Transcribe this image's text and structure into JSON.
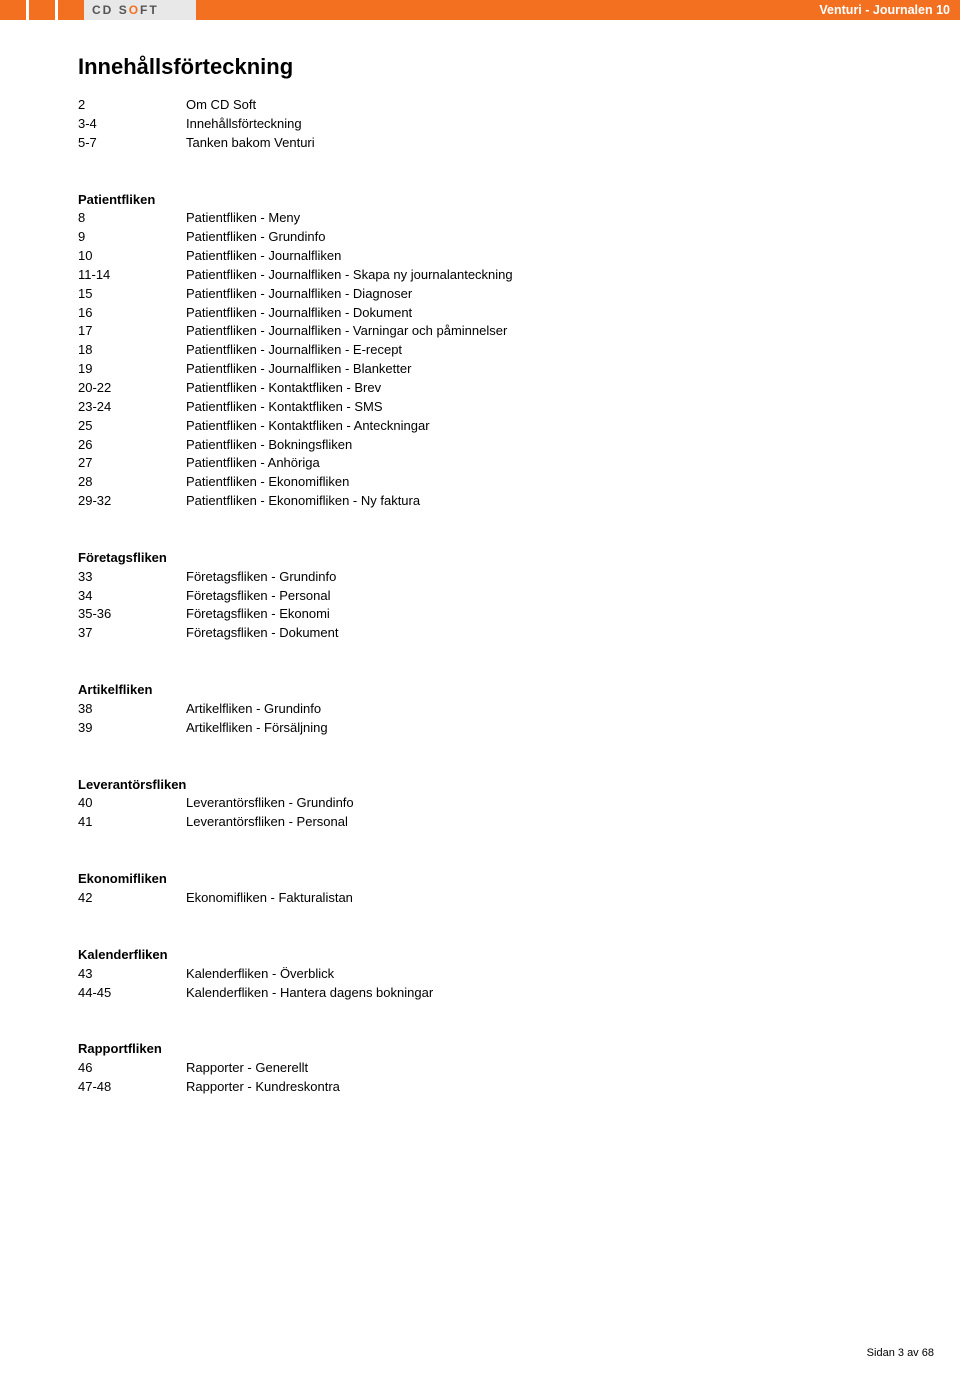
{
  "header": {
    "logo_cd": "CD",
    "logo_soft": "SOFT",
    "title_right": "Venturi - Journalen 10"
  },
  "page_title": "Innehållsförteckning",
  "sections": [
    {
      "heading": null,
      "rows": [
        {
          "page": "2",
          "text": "Om CD Soft"
        },
        {
          "page": "3-4",
          "text": "Innehållsförteckning"
        },
        {
          "page": "5-7",
          "text": "Tanken bakom Venturi"
        }
      ]
    },
    {
      "heading": "Patientfliken",
      "rows": [
        {
          "page": "8",
          "text": "Patientfliken - Meny"
        },
        {
          "page": "9",
          "text": "Patientfliken - Grundinfo"
        },
        {
          "page": "10",
          "text": "Patientfliken - Journalfliken"
        },
        {
          "page": "11-14",
          "text": "Patientfliken - Journalfliken - Skapa ny journalanteckning"
        },
        {
          "page": "15",
          "text": "Patientfliken - Journalfliken - Diagnoser"
        },
        {
          "page": "16",
          "text": "Patientfliken - Journalfliken - Dokument"
        },
        {
          "page": "17",
          "text": "Patientfliken - Journalfliken - Varningar och påminnelser"
        },
        {
          "page": "18",
          "text": "Patientfliken - Journalfliken - E-recept"
        },
        {
          "page": "19",
          "text": "Patientfliken - Journalfliken - Blanketter"
        },
        {
          "page": "20-22",
          "text": "Patientfliken - Kontaktfliken - Brev"
        },
        {
          "page": "23-24",
          "text": "Patientfliken - Kontaktfliken - SMS"
        },
        {
          "page": "25",
          "text": "Patientfliken - Kontaktfliken - Anteckningar"
        },
        {
          "page": "26",
          "text": "Patientfliken - Bokningsfliken"
        },
        {
          "page": "27",
          "text": "Patientfliken - Anhöriga"
        },
        {
          "page": "28",
          "text": "Patientfliken - Ekonomifliken"
        },
        {
          "page": "29-32",
          "text": "Patientfliken - Ekonomifliken - Ny faktura"
        }
      ]
    },
    {
      "heading": "Företagsfliken",
      "rows": [
        {
          "page": "33",
          "text": "Företagsfliken - Grundinfo"
        },
        {
          "page": "34",
          "text": "Företagsfliken - Personal"
        },
        {
          "page": "35-36",
          "text": "Företagsfliken - Ekonomi"
        },
        {
          "page": "37",
          "text": "Företagsfliken - Dokument"
        }
      ]
    },
    {
      "heading": "Artikelfliken",
      "rows": [
        {
          "page": "38",
          "text": "Artikelfliken - Grundinfo"
        },
        {
          "page": "39",
          "text": "Artikelfliken - Försäljning"
        }
      ]
    },
    {
      "heading": "Leverantörsfliken",
      "rows": [
        {
          "page": "40",
          "text": "Leverantörsfliken - Grundinfo"
        },
        {
          "page": "41",
          "text": "Leverantörsfliken - Personal"
        }
      ]
    },
    {
      "heading": "Ekonomifliken",
      "rows": [
        {
          "page": "42",
          "text": "Ekonomifliken - Fakturalistan"
        }
      ]
    },
    {
      "heading": "Kalenderfliken",
      "rows": [
        {
          "page": "43",
          "text": "Kalenderfliken - Överblick"
        },
        {
          "page": "44-45",
          "text": "Kalenderfliken - Hantera dagens bokningar"
        }
      ]
    },
    {
      "heading": "Rapportfliken",
      "rows": [
        {
          "page": "46",
          "text": "Rapporter - Generellt"
        },
        {
          "page": "47-48",
          "text": "Rapporter - Kundreskontra"
        }
      ]
    }
  ],
  "footer": {
    "label_sidan": "Sidan",
    "page_num": "3",
    "label_av": "av",
    "total": "68"
  },
  "colors": {
    "accent": "#f37021",
    "text": "#000000",
    "bg": "#ffffff",
    "grey": "#e8e8e8"
  }
}
